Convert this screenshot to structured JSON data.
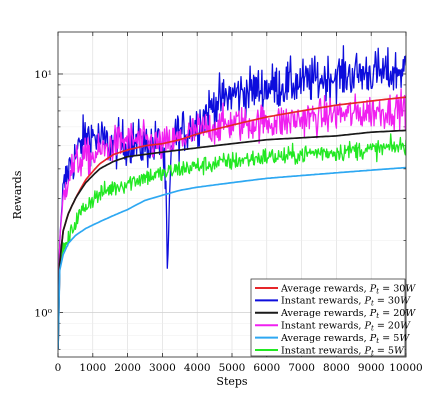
{
  "chart_data": {
    "type": "line",
    "title": "",
    "xlabel": "Steps",
    "ylabel": "Rewards",
    "xlim": [
      0,
      10000
    ],
    "ylim": [
      0.65,
      15
    ],
    "yscale": "log",
    "grid": true,
    "legend_position": "bottom-right",
    "x_ticks": [
      0,
      1000,
      2000,
      3000,
      4000,
      5000,
      6000,
      7000,
      8000,
      9000,
      10000
    ],
    "x_tick_labels": [
      "0",
      "1000",
      "2000",
      "3000",
      "4000",
      "5000",
      "6000",
      "7000",
      "8000",
      "9000",
      "10000"
    ],
    "y_major_ticks": [
      1,
      10
    ],
    "y_tick_labels": [
      "10⁰",
      "10¹"
    ],
    "y_minor_ticks": [
      0.7,
      0.8,
      0.9,
      2,
      3,
      4,
      5,
      6,
      7,
      8,
      9
    ],
    "series": [
      {
        "name": "Average rewards, P_t = 30W",
        "legend_prefix": "Average rewards, ",
        "legend_power": "30W",
        "kind": "average",
        "color": "#e6262a",
        "x": [
          0,
          50,
          150,
          300,
          500,
          800,
          1200,
          1600,
          2000,
          2500,
          3000,
          3500,
          4000,
          5000,
          6000,
          7000,
          8000,
          9000,
          10000
        ],
        "y": [
          0.7,
          1.6,
          2.2,
          2.6,
          3.0,
          3.6,
          4.2,
          4.6,
          4.8,
          5.0,
          5.1,
          5.3,
          5.6,
          6.1,
          6.6,
          7.0,
          7.4,
          7.7,
          8.0
        ]
      },
      {
        "name": "Instant rewards, P_t = 30W",
        "legend_prefix": "Instant rewards, ",
        "legend_power": "30W",
        "kind": "instant",
        "color": "#0d0ddc",
        "x": [
          0,
          50,
          150,
          300,
          500,
          800,
          1000,
          1500,
          2000,
          2500,
          3000,
          3100,
          3150,
          3200,
          3300,
          3500,
          4000,
          4500,
          5000,
          5500,
          6000,
          6500,
          7000,
          7500,
          8000,
          8500,
          9000,
          9500,
          10000
        ],
        "y": [
          0.7,
          2.0,
          3.2,
          4.0,
          4.5,
          5.5,
          5.5,
          5.0,
          5.2,
          5.0,
          5.2,
          3.0,
          1.1,
          2.8,
          5.5,
          5.6,
          6.2,
          7.5,
          8.2,
          8.5,
          8.8,
          9.0,
          9.2,
          9.5,
          9.8,
          10.0,
          10.2,
          10.0,
          10.5
        ],
        "noise": 0.22
      },
      {
        "name": "Average rewards, P_t = 20W",
        "legend_prefix": "Average rewards, ",
        "legend_power": "20W",
        "kind": "average",
        "color": "#1a1a1a",
        "x": [
          0,
          50,
          150,
          300,
          500,
          800,
          1200,
          1600,
          2000,
          2500,
          3000,
          3500,
          4000,
          5000,
          6000,
          7000,
          8000,
          9000,
          10000
        ],
        "y": [
          0.7,
          1.6,
          2.2,
          2.6,
          3.0,
          3.5,
          4.0,
          4.3,
          4.5,
          4.6,
          4.7,
          4.8,
          4.9,
          5.1,
          5.3,
          5.4,
          5.5,
          5.7,
          5.8
        ]
      },
      {
        "name": "Instant rewards, P_t = 20W",
        "legend_prefix": "Instant rewards, ",
        "legend_power": "20W",
        "kind": "instant",
        "color": "#f020f0",
        "x": [
          0,
          50,
          150,
          300,
          500,
          800,
          1000,
          1500,
          2000,
          2500,
          3000,
          3500,
          4000,
          4500,
          5000,
          5500,
          6000,
          6500,
          7000,
          7500,
          8000,
          8500,
          9000,
          9500,
          10000
        ],
        "y": [
          0.7,
          2.0,
          3.0,
          3.8,
          4.2,
          4.5,
          4.5,
          5.0,
          5.3,
          5.2,
          5.0,
          5.3,
          5.8,
          6.0,
          6.2,
          6.2,
          6.3,
          6.3,
          6.5,
          6.6,
          6.8,
          6.8,
          7.0,
          7.0,
          7.3
        ],
        "noise": 0.17
      },
      {
        "name": "Average rewards, P_t = 5W",
        "legend_prefix": "Average rewards, ",
        "legend_power": "5W",
        "kind": "average",
        "color": "#2ea8f2",
        "x": [
          0,
          50,
          150,
          300,
          500,
          800,
          1200,
          1600,
          2000,
          2500,
          3000,
          3500,
          4000,
          5000,
          6000,
          7000,
          8000,
          9000,
          10000
        ],
        "y": [
          0.7,
          1.5,
          1.75,
          1.95,
          2.1,
          2.25,
          2.4,
          2.55,
          2.7,
          2.95,
          3.1,
          3.25,
          3.35,
          3.5,
          3.65,
          3.75,
          3.85,
          3.95,
          4.05
        ]
      },
      {
        "name": "Instant rewards, P_t = 5W",
        "legend_prefix": "Instant rewards, ",
        "legend_power": "5W",
        "kind": "instant",
        "color": "#22e822",
        "x": [
          0,
          50,
          150,
          300,
          500,
          800,
          1000,
          1500,
          2000,
          2500,
          3000,
          3500,
          4000,
          4500,
          5000,
          5500,
          6000,
          6500,
          7000,
          7500,
          8000,
          8500,
          9000,
          9500,
          10000
        ],
        "y": [
          0.7,
          1.6,
          1.8,
          2.0,
          2.4,
          2.8,
          3.0,
          3.3,
          3.5,
          3.7,
          3.8,
          4.0,
          4.1,
          4.2,
          4.3,
          4.4,
          4.5,
          4.5,
          4.6,
          4.7,
          4.7,
          4.8,
          4.8,
          4.9,
          5.0
        ],
        "noise": 0.09
      }
    ]
  }
}
